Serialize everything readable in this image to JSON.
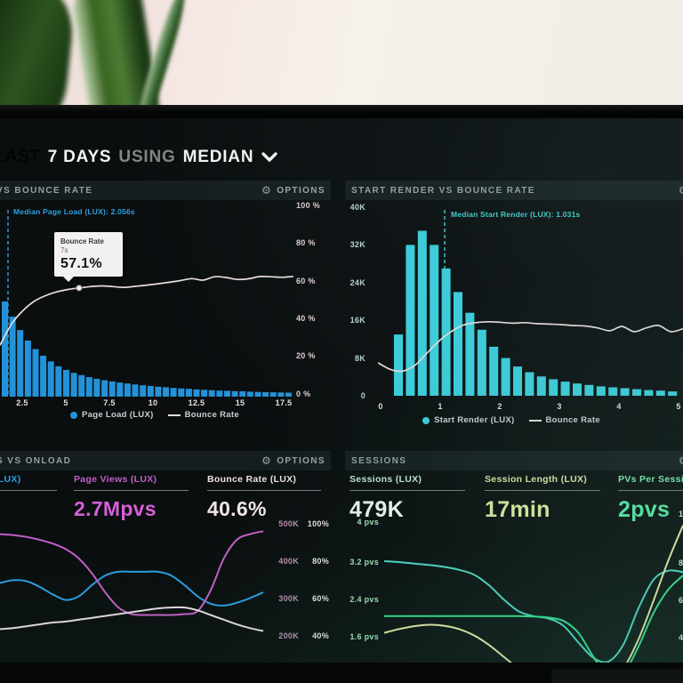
{
  "header": {
    "prefix": "LAST",
    "range": "7 DAYS",
    "using": "USING",
    "aggregation": "MEDIAN"
  },
  "icons": {
    "gear": "⚙"
  },
  "chart_data": [
    {
      "id": "page-load-vs-bounce-rate",
      "type": "bar+line",
      "title": "VS BOUNCE RATE",
      "options_label": "OPTIONS",
      "median_label": "Median Page Load (LUX): 2.056s",
      "median_color": "#2f9fe0",
      "tooltip": {
        "series": "Bounce Rate",
        "x": "7s",
        "value": "57.1%"
      },
      "legend": [
        {
          "series": "Page Load (LUX)",
          "marker": "dot",
          "color": "#2492d8"
        },
        {
          "series": "Bounce Rate",
          "marker": "line",
          "color": "#e9dcdc"
        }
      ],
      "x_ticks": [
        "2.5",
        "5",
        "7.5",
        "10",
        "12.5",
        "15",
        "17.5"
      ],
      "y_ticks": [
        "100 %",
        "80 %",
        "60 %",
        "40 %",
        "20 %",
        "0 %"
      ],
      "y_range": [
        0,
        100
      ],
      "bar_color": "#2492d8",
      "line_color": "#e9dcdc",
      "bars_pct": [
        50,
        42,
        35,
        29.5,
        25,
        21.5,
        18.5,
        16,
        14,
        12.5,
        11.3,
        10.3,
        9.4,
        8.6,
        8,
        7.4,
        6.9,
        6.4,
        6,
        5.6,
        5.2,
        4.9,
        4.6,
        4.3,
        4.1,
        3.8,
        3.6,
        3.4,
        3.2,
        3.1,
        2.9,
        2.8,
        2.6,
        2.5,
        2.4,
        2.3,
        2.2,
        2.1
      ],
      "line_pct": [
        27,
        38,
        45,
        50,
        53,
        55,
        56.3,
        57.1,
        57.8,
        58.2,
        57.8,
        57.4,
        58,
        58.6,
        59.3,
        60.1,
        61,
        62,
        61.2,
        63,
        62.6,
        61.6,
        61.9,
        63.1,
        63,
        62.7,
        63.2
      ]
    },
    {
      "id": "start-render-vs-bounce-rate",
      "type": "bar+line",
      "title": "START RENDER VS BOUNCE RATE",
      "median_label": "Median Start Render (LUX): 1.031s",
      "median_color": "#3fd0cc",
      "legend": [
        {
          "series": "Start Render (LUX)",
          "marker": "dot",
          "color": "#3bcfdd"
        },
        {
          "series": "Bounce Rate",
          "marker": "line",
          "color": "#e9dcdc"
        }
      ],
      "x_ticks": [
        "0",
        "1",
        "2",
        "3",
        "4",
        "5"
      ],
      "y_ticks": [
        "40K",
        "32K",
        "24K",
        "16K",
        "8K",
        "0"
      ],
      "y_range_k": [
        0,
        40
      ],
      "bar_color": "#3bcfdd",
      "line_color": "#e9dcdc",
      "bars_k": [
        13,
        32,
        35,
        32,
        27,
        22,
        17.6,
        14,
        10.4,
        8,
        6.2,
        5,
        4.1,
        3.5,
        3,
        2.6,
        2.3,
        2,
        1.8,
        1.6,
        1.4,
        1.2,
        1.1,
        0.9
      ],
      "line_k": [
        7,
        5.6,
        5.2,
        6.4,
        9,
        11.6,
        13.6,
        15,
        15.5,
        15.7,
        15.6,
        15.4,
        15.5,
        15.3,
        15.2,
        15.1,
        14.9,
        14.8,
        14.4,
        13.8,
        14.7,
        13.6,
        14.4,
        14.9,
        13.6,
        14.2
      ]
    },
    {
      "id": "vs-onload",
      "type": "line",
      "title": "S VS ONLOAD",
      "options_label": "OPTIONS",
      "metrics": [
        {
          "label": "(LUX)",
          "value": "",
          "label_color": "#2d9de0",
          "value_color": "#2d9de0"
        },
        {
          "label": "Page Views (LUX)",
          "value": "2.7Mpvs",
          "label_color": "#c35fc6",
          "value_color": "#d75fd7"
        },
        {
          "label": "Bounce Rate (LUX)",
          "value": "40.6%",
          "label_color": "#ece0e4",
          "value_color": "#f0e4e8"
        }
      ],
      "y_axis_right": [
        {
          "k": "500K",
          "pct": "100%"
        },
        {
          "k": "400K",
          "pct": "80%"
        },
        {
          "k": "300K",
          "pct": "60%"
        },
        {
          "k": "200K",
          "pct": "40%"
        }
      ],
      "series": [
        {
          "id": "onload",
          "color": "#2d9de0",
          "values_pct": [
            69,
            70.5,
            70,
            67,
            63,
            60,
            62,
            68,
            73,
            75,
            75,
            75,
            75,
            73,
            68,
            62,
            58,
            57,
            58.5,
            61,
            64
          ]
        },
        {
          "id": "page-views",
          "color": "#c35fc6",
          "values_pct": [
            95,
            94.5,
            93.5,
            92,
            90,
            87,
            82,
            74,
            64,
            56,
            52.5,
            52,
            52,
            52,
            52.5,
            54,
            65,
            82,
            92,
            95,
            96.5
          ]
        },
        {
          "id": "bounce-rate",
          "color": "#e6dbe0",
          "values_pct": [
            44.5,
            45,
            46,
            47,
            48,
            48.5,
            49.5,
            50.5,
            51.5,
            52.5,
            53.5,
            54.5,
            55.5,
            56,
            56,
            54.5,
            52,
            49.5,
            47,
            45,
            43.5
          ]
        }
      ]
    },
    {
      "id": "sessions",
      "type": "line",
      "title": "SESSIONS",
      "metrics": [
        {
          "label": "Sessions (LUX)",
          "value": "479K",
          "label_color": "#bfe3cf",
          "value_color": "#e8f3ec"
        },
        {
          "label": "Session Length (LUX)",
          "value": "17min",
          "label_color": "#d9e3a3",
          "value_color": "#dcea9e"
        },
        {
          "label": "PVs Per Session (LUX)",
          "value": "2pvs",
          "label_color": "#7fe8b0",
          "value_color": "#58e8a4"
        }
      ],
      "y_axis_left": [
        "4 pvs",
        "3.2 pvs",
        "2.4 pvs",
        "1.6 pvs"
      ],
      "y_axis_right_clipped": [
        "1",
        "8",
        "6",
        "4"
      ],
      "series": [
        {
          "id": "sessions",
          "color": "#4fd6c5",
          "values_pvs": [
            3.2,
            3.18,
            3.15,
            3.12,
            3.08,
            3.02,
            2.92,
            2.7,
            2.4,
            2.15,
            2.05,
            2.0,
            1.85,
            1.5,
            1.18,
            1.1,
            1.45,
            2.2,
            2.8,
            3.0,
            2.97
          ]
        },
        {
          "id": "pvs-per-session",
          "color": "#34e08e",
          "values_pvs": [
            2.05,
            2.05,
            2.05,
            2.05,
            2.05,
            2.05,
            2.05,
            2.05,
            2.05,
            2.05,
            2.04,
            2.02,
            1.95,
            1.7,
            1.2,
            0.78,
            0.85,
            1.4,
            2.1,
            2.6,
            2.9
          ]
        },
        {
          "id": "session-length",
          "color": "#e6e8a6",
          "values_pvs": [
            1.7,
            1.78,
            1.84,
            1.87,
            1.85,
            1.78,
            1.65,
            1.45,
            1.2,
            0.95,
            0.75,
            0.62,
            0.55,
            0.52,
            0.56,
            0.68,
            0.95,
            1.55,
            2.35,
            3.2,
            3.95
          ]
        }
      ]
    }
  ]
}
